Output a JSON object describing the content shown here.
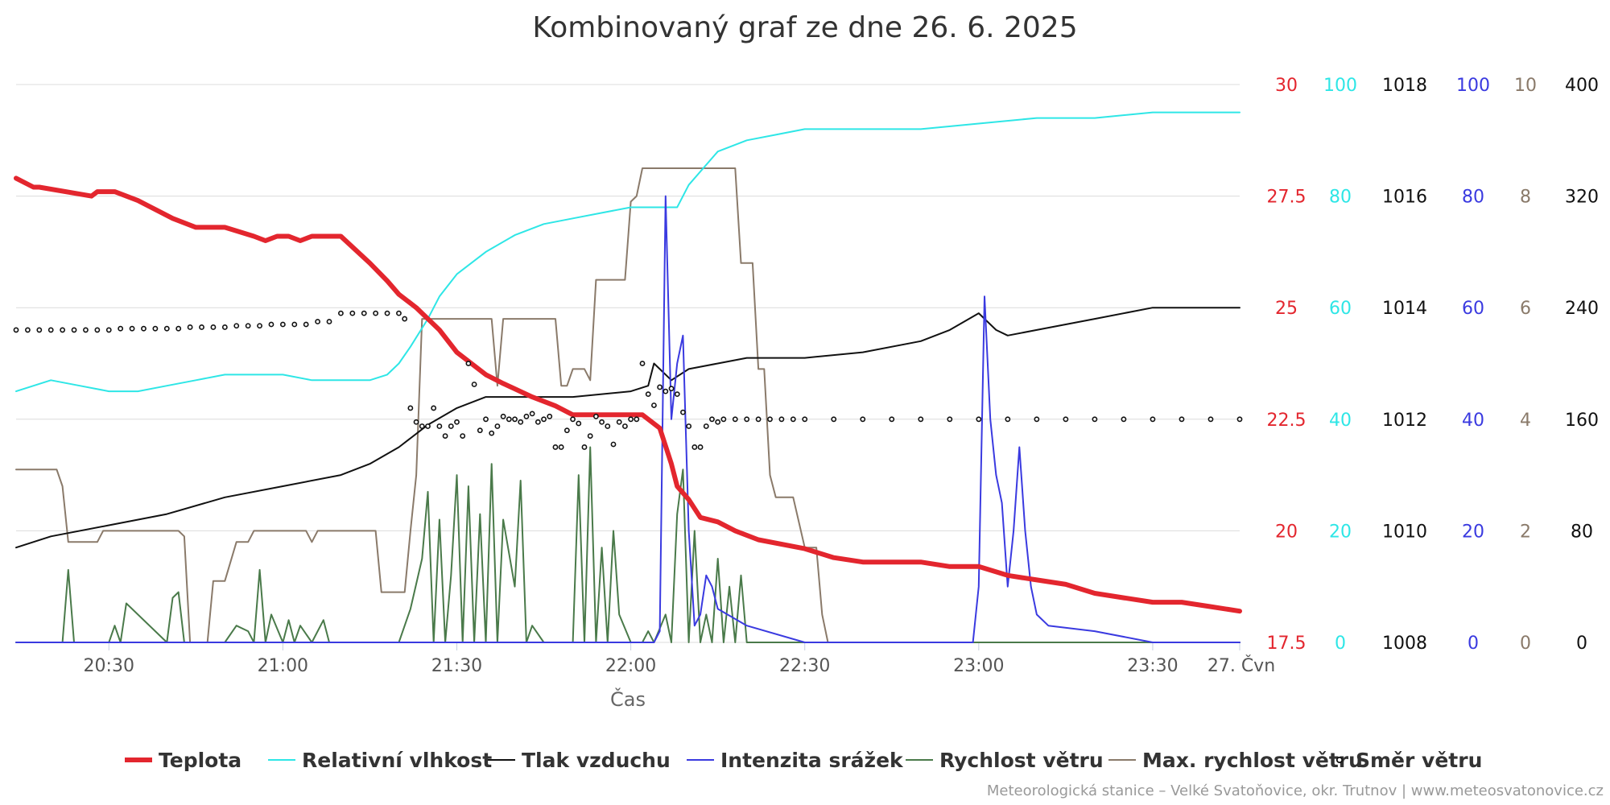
{
  "chart_data": {
    "type": "line",
    "title": "Kombinovaný graf ze dne 26. 6. 2025",
    "xlabel": "Čas",
    "xlim": [
      "20:14",
      "23:45"
    ],
    "x_ticks": [
      "20:30",
      "21:00",
      "21:30",
      "22:00",
      "22:30",
      "23:00",
      "23:30",
      "27. Čvn"
    ],
    "axes": [
      {
        "series": "Teplota",
        "color": "#e3262e",
        "ticks": [
          "30",
          "27.5",
          "25",
          "22.5",
          "20",
          "17.5"
        ],
        "ylim": [
          17.5,
          30
        ]
      },
      {
        "series": "Relativní vlhkost",
        "color": "#2ee6e6",
        "ticks": [
          "100",
          "80",
          "60",
          "40",
          "20",
          "0"
        ],
        "ylim": [
          0,
          100
        ]
      },
      {
        "series": "Tlak vzduchu",
        "color": "#111111",
        "ticks": [
          "1018",
          "1016",
          "1014",
          "1012",
          "1010",
          "1008"
        ],
        "ylim": [
          1008,
          1018
        ]
      },
      {
        "series": "Intenzita srážek",
        "color": "#3a3ae0",
        "ticks": [
          "100",
          "80",
          "60",
          "40",
          "20",
          "0"
        ],
        "ylim": [
          0,
          100
        ]
      },
      {
        "series": "Max. rychlost větru",
        "color": "#8a7a6a",
        "ticks": [
          "10",
          "8",
          "6",
          "4",
          "2",
          "0"
        ],
        "ylim": [
          0,
          10
        ]
      },
      {
        "series": "Směr větru",
        "color": "#111111",
        "ticks": [
          "400",
          "320",
          "240",
          "160",
          "80",
          "0"
        ],
        "ylim": [
          0,
          400
        ]
      }
    ],
    "series": [
      {
        "name": "Teplota",
        "color": "#e3262e",
        "type": "line",
        "x": [
          "20:14",
          "20:17",
          "20:18",
          "20:27",
          "20:28",
          "20:29",
          "20:31",
          "20:35",
          "20:38",
          "20:41",
          "20:45",
          "20:50",
          "20:55",
          "20:57",
          "20:59",
          "21:00",
          "21:01",
          "21:03",
          "21:05",
          "21:07",
          "21:08",
          "21:10",
          "21:15",
          "21:18",
          "21:20",
          "21:23",
          "21:27",
          "21:30",
          "21:35",
          "21:38",
          "21:43",
          "21:47",
          "21:50",
          "21:55",
          "22:02",
          "22:05",
          "22:07",
          "22:08",
          "22:10",
          "22:12",
          "22:15",
          "22:18",
          "22:22",
          "22:30",
          "22:35",
          "22:40",
          "22:45",
          "22:50",
          "22:55",
          "23:00",
          "23:05",
          "23:10",
          "23:15",
          "23:20",
          "23:25",
          "23:30",
          "23:35",
          "23:40",
          "23:45"
        ],
        "values": [
          27.9,
          27.7,
          27.7,
          27.5,
          27.6,
          27.6,
          27.6,
          27.4,
          27.2,
          27.0,
          26.8,
          26.8,
          26.6,
          26.5,
          26.6,
          26.6,
          26.6,
          26.5,
          26.6,
          26.6,
          26.6,
          26.6,
          26.0,
          25.6,
          25.3,
          25.0,
          24.5,
          24.0,
          23.5,
          23.3,
          23.0,
          22.8,
          22.6,
          22.6,
          22.6,
          22.3,
          21.5,
          21.0,
          20.7,
          20.3,
          20.2,
          20.0,
          19.8,
          19.6,
          19.4,
          19.3,
          19.3,
          19.3,
          19.2,
          19.2,
          19.0,
          18.9,
          18.8,
          18.6,
          18.5,
          18.4,
          18.4,
          18.3,
          18.2
        ]
      },
      {
        "name": "Relativní vlhkost",
        "color": "#2ee6e6",
        "type": "line",
        "x": [
          "20:14",
          "20:20",
          "20:25",
          "20:30",
          "20:35",
          "20:40",
          "20:45",
          "20:50",
          "20:55",
          "21:00",
          "21:05",
          "21:10",
          "21:15",
          "21:18",
          "21:20",
          "21:22",
          "21:25",
          "21:27",
          "21:30",
          "21:35",
          "21:40",
          "21:45",
          "21:50",
          "21:55",
          "22:00",
          "22:05",
          "22:08",
          "22:10",
          "22:15",
          "22:20",
          "22:25",
          "22:30",
          "22:40",
          "22:50",
          "23:00",
          "23:10",
          "23:20",
          "23:30",
          "23:45"
        ],
        "values": [
          45,
          47,
          46,
          45,
          45,
          46,
          47,
          48,
          48,
          48,
          47,
          47,
          47,
          48,
          50,
          53,
          58,
          62,
          66,
          70,
          73,
          75,
          76,
          77,
          78,
          78,
          78,
          82,
          88,
          90,
          91,
          92,
          92,
          92,
          93,
          94,
          94,
          95,
          95
        ]
      },
      {
        "name": "Tlak vzduchu",
        "color": "#111111",
        "type": "line",
        "x": [
          "20:14",
          "20:20",
          "20:30",
          "20:40",
          "20:50",
          "21:00",
          "21:10",
          "21:15",
          "21:20",
          "21:25",
          "21:30",
          "21:35",
          "21:45",
          "21:50",
          "22:00",
          "22:03",
          "22:04",
          "22:05",
          "22:07",
          "22:10",
          "22:15",
          "22:20",
          "22:30",
          "22:40",
          "22:50",
          "22:55",
          "23:00",
          "23:03",
          "23:05",
          "23:10",
          "23:20",
          "23:30",
          "23:40",
          "23:45"
        ],
        "values": [
          1009.7,
          1009.9,
          1010.1,
          1010.3,
          1010.6,
          1010.8,
          1011.0,
          1011.2,
          1011.5,
          1011.9,
          1012.2,
          1012.4,
          1012.4,
          1012.4,
          1012.5,
          1012.6,
          1013.0,
          1012.9,
          1012.7,
          1012.9,
          1013.0,
          1013.1,
          1013.1,
          1013.2,
          1013.4,
          1013.6,
          1013.9,
          1013.6,
          1013.5,
          1013.6,
          1013.8,
          1014.0,
          1014.0,
          1014.0
        ]
      },
      {
        "name": "Intenzita srážek",
        "color": "#3a3ae0",
        "type": "line",
        "x": [
          "20:14",
          "22:04",
          "22:05",
          "22:06",
          "22:07",
          "22:08",
          "22:09",
          "22:10",
          "22:11",
          "22:12",
          "22:13",
          "22:14",
          "22:15",
          "22:20",
          "22:30",
          "22:50",
          "22:59",
          "23:00",
          "23:01",
          "23:02",
          "23:03",
          "23:04",
          "23:05",
          "23:06",
          "23:07",
          "23:08",
          "23:09",
          "23:10",
          "23:12",
          "23:20",
          "23:30",
          "23:45"
        ],
        "values": [
          0,
          0,
          2,
          80,
          40,
          50,
          55,
          20,
          3,
          5,
          12,
          10,
          6,
          3,
          0,
          0,
          0,
          10,
          62,
          40,
          30,
          25,
          10,
          20,
          35,
          20,
          10,
          5,
          3,
          2,
          0,
          0
        ]
      },
      {
        "name": "Rychlost větru",
        "color": "#4a7a4a",
        "type": "line",
        "x": [
          "20:14",
          "20:22",
          "20:23",
          "20:24",
          "20:30",
          "20:31",
          "20:32",
          "20:33",
          "20:40",
          "20:41",
          "20:42",
          "20:43",
          "20:45",
          "20:50",
          "20:52",
          "20:54",
          "20:55",
          "20:56",
          "20:57",
          "20:58",
          "21:00",
          "21:01",
          "21:02",
          "21:03",
          "21:05",
          "21:07",
          "21:08",
          "21:10",
          "21:15",
          "21:20",
          "21:22",
          "21:24",
          "21:25",
          "21:26",
          "21:27",
          "21:28",
          "21:29",
          "21:30",
          "21:31",
          "21:32",
          "21:33",
          "21:34",
          "21:35",
          "21:36",
          "21:37",
          "21:38",
          "21:40",
          "21:41",
          "21:42",
          "21:43",
          "21:45",
          "21:50",
          "21:51",
          "21:52",
          "21:53",
          "21:54",
          "21:55",
          "21:56",
          "21:57",
          "21:58",
          "22:00",
          "22:02",
          "22:03",
          "22:04",
          "22:06",
          "22:07",
          "22:08",
          "22:09",
          "22:10",
          "22:11",
          "22:12",
          "22:13",
          "22:14",
          "22:15",
          "22:16",
          "22:17",
          "22:18",
          "22:19",
          "22:20",
          "22:22",
          "23:45"
        ],
        "values": [
          0,
          0,
          1.3,
          0,
          0,
          0.3,
          0,
          0.7,
          0,
          0.8,
          0.9,
          0,
          0,
          0,
          0.3,
          0.2,
          0,
          1.3,
          0,
          0.5,
          0,
          0.4,
          0,
          0.3,
          0,
          0.4,
          0,
          0,
          0,
          0,
          0.6,
          1.5,
          2.7,
          0,
          2.2,
          0,
          1.2,
          3,
          0,
          2.8,
          0,
          2.3,
          0,
          3.2,
          0,
          2.2,
          1.0,
          2.9,
          0,
          0.3,
          0,
          0,
          3.0,
          0,
          3.5,
          0,
          1.7,
          0,
          2.0,
          0.5,
          0,
          0,
          0.2,
          0,
          0.5,
          0,
          2.3,
          3.1,
          0,
          2.0,
          0,
          0.5,
          0,
          1.5,
          0,
          1.0,
          0,
          1.2,
          0,
          0,
          0
        ]
      },
      {
        "name": "Max. rychlost větru",
        "color": "#8a7a6a",
        "type": "line",
        "x": [
          "20:14",
          "20:21",
          "20:22",
          "20:23",
          "20:27",
          "20:28",
          "20:29",
          "20:30",
          "20:42",
          "20:43",
          "20:44",
          "20:47",
          "20:48",
          "20:50",
          "20:52",
          "20:54",
          "20:55",
          "20:56",
          "21:00",
          "21:04",
          "21:05",
          "21:06",
          "21:10",
          "21:12",
          "21:16",
          "21:17",
          "21:21",
          "21:22",
          "21:23",
          "21:24",
          "21:25",
          "21:30",
          "21:36",
          "21:37",
          "21:38",
          "21:39",
          "21:40",
          "21:45",
          "21:47",
          "21:48",
          "21:49",
          "21:50",
          "21:52",
          "21:53",
          "21:54",
          "21:55",
          "21:59",
          "22:00",
          "22:01",
          "22:02",
          "22:03",
          "22:04",
          "22:05",
          "22:06",
          "22:07",
          "22:08",
          "22:09",
          "22:10",
          "22:11",
          "22:12",
          "22:13",
          "22:14",
          "22:15",
          "22:16",
          "22:17",
          "22:18",
          "22:19",
          "22:20",
          "22:21",
          "22:22",
          "22:23",
          "22:24",
          "22:25",
          "22:26",
          "22:28",
          "22:30",
          "22:32",
          "22:33",
          "22:34",
          "23:45"
        ],
        "values": [
          3.1,
          3.1,
          2.8,
          1.8,
          1.8,
          1.8,
          2.0,
          2.0,
          2.0,
          1.9,
          0,
          0,
          1.1,
          1.1,
          1.8,
          1.8,
          2.0,
          2.0,
          2.0,
          2.0,
          1.8,
          2.0,
          2.0,
          2.0,
          2.0,
          0.9,
          0.9,
          2.0,
          3.0,
          5.8,
          5.8,
          5.8,
          5.8,
          4.6,
          5.8,
          5.8,
          5.8,
          5.8,
          5.8,
          4.6,
          4.6,
          4.9,
          4.9,
          4.7,
          6.5,
          6.5,
          6.5,
          7.9,
          8.0,
          8.5,
          8.5,
          8.5,
          8.5,
          8.5,
          8.5,
          8.5,
          8.5,
          8.5,
          8.5,
          8.5,
          8.5,
          8.5,
          8.5,
          8.5,
          8.5,
          8.5,
          6.8,
          6.8,
          6.8,
          4.9,
          4.9,
          3.0,
          2.6,
          2.6,
          2.6,
          1.7,
          1.7,
          0.5,
          0,
          0
        ]
      },
      {
        "name": "Směr větru",
        "color": "#111111",
        "type": "scatter",
        "x": [
          "20:14",
          "20:16",
          "20:18",
          "20:20",
          "20:22",
          "20:24",
          "20:26",
          "20:28",
          "20:30",
          "20:32",
          "20:34",
          "20:36",
          "20:38",
          "20:40",
          "20:42",
          "20:44",
          "20:46",
          "20:48",
          "20:50",
          "20:52",
          "20:54",
          "20:56",
          "20:58",
          "21:00",
          "21:02",
          "21:04",
          "21:06",
          "21:08",
          "21:10",
          "21:12",
          "21:14",
          "21:16",
          "21:18",
          "21:20",
          "21:21",
          "21:22",
          "21:23",
          "21:24",
          "21:25",
          "21:26",
          "21:27",
          "21:28",
          "21:29",
          "21:30",
          "21:31",
          "21:32",
          "21:33",
          "21:34",
          "21:35",
          "21:36",
          "21:37",
          "21:38",
          "21:39",
          "21:40",
          "21:41",
          "21:42",
          "21:43",
          "21:44",
          "21:45",
          "21:46",
          "21:47",
          "21:48",
          "21:49",
          "21:50",
          "21:51",
          "21:52",
          "21:53",
          "21:54",
          "21:55",
          "21:56",
          "21:57",
          "21:58",
          "21:59",
          "22:00",
          "22:01",
          "22:02",
          "22:03",
          "22:04",
          "22:05",
          "22:06",
          "22:07",
          "22:08",
          "22:09",
          "22:10",
          "22:11",
          "22:12",
          "22:13",
          "22:14",
          "22:15",
          "22:16",
          "22:18",
          "22:20",
          "22:22",
          "22:24",
          "22:26",
          "22:28",
          "22:30",
          "22:35",
          "22:40",
          "22:45",
          "22:50",
          "22:55",
          "23:00",
          "23:05",
          "23:10",
          "23:15",
          "23:20",
          "23:25",
          "23:30",
          "23:35",
          "23:40",
          "23:45"
        ],
        "values": [
          224,
          224,
          224,
          224,
          224,
          224,
          224,
          224,
          224,
          225,
          225,
          225,
          225,
          225,
          225,
          226,
          226,
          226,
          226,
          227,
          227,
          227,
          228,
          228,
          228,
          228,
          230,
          230,
          236,
          236,
          236,
          236,
          236,
          236,
          232,
          168,
          158,
          155,
          155,
          168,
          155,
          148,
          155,
          158,
          148,
          200,
          185,
          152,
          160,
          150,
          155,
          162,
          160,
          160,
          158,
          162,
          164,
          158,
          160,
          162,
          140,
          140,
          152,
          160,
          157,
          140,
          148,
          162,
          158,
          155,
          142,
          158,
          155,
          160,
          160,
          200,
          178,
          170,
          183,
          180,
          182,
          178,
          165,
          155,
          140,
          140,
          155,
          160,
          158,
          160,
          160,
          160,
          160,
          160,
          160,
          160,
          160,
          160,
          160,
          160,
          160,
          160,
          160,
          160,
          160,
          160,
          160,
          160,
          160,
          160,
          160,
          160
        ]
      }
    ]
  },
  "legend": [
    {
      "label": "Teplota",
      "color": "#e3262e",
      "symbol": "thick-line"
    },
    {
      "label": "Relativní vlhkost",
      "color": "#2ee6e6",
      "symbol": "line"
    },
    {
      "label": "Tlak vzduchu",
      "color": "#111111",
      "symbol": "line"
    },
    {
      "label": "Intenzita srážek",
      "color": "#3a3ae0",
      "symbol": "line"
    },
    {
      "label": "Rychlost větru",
      "color": "#4a7a4a",
      "symbol": "line"
    },
    {
      "label": "Max. rychlost větru",
      "color": "#8a7a6a",
      "symbol": "line"
    },
    {
      "label": "Směr větru",
      "color": "#111111",
      "symbol": "dot"
    }
  ],
  "credit": "Meteorologická stanice – Velké Svatoňovice, okr. Trutnov | www.meteosvatonovice.cz"
}
